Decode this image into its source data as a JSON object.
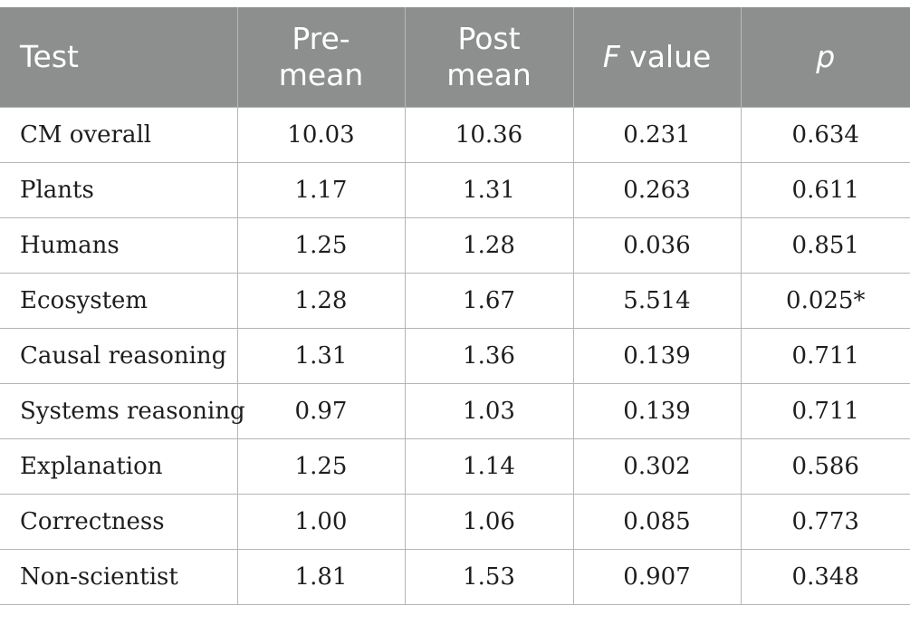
{
  "table": {
    "headers": {
      "test": "Test",
      "pre_mean_line1": "Pre-",
      "pre_mean_line2": "mean",
      "post_mean_line1": "Post",
      "post_mean_line2": "mean",
      "f_value_italic": "F",
      "f_value_rest": " value",
      "p": "p"
    },
    "rows": [
      [
        "CM overall",
        "10.03",
        "10.36",
        "0.231",
        "0.634"
      ],
      [
        "Plants",
        "1.17",
        "1.31",
        "0.263",
        "0.611"
      ],
      [
        "Humans",
        "1.25",
        "1.28",
        "0.036",
        "0.851"
      ],
      [
        "Ecosystem",
        "1.28",
        "1.67",
        "5.514",
        "0.025*"
      ],
      [
        "Causal reasoning",
        "1.31",
        "1.36",
        "0.139",
        "0.711"
      ],
      [
        "Systems reasoning",
        "0.97",
        "1.03",
        "0.139",
        "0.711"
      ],
      [
        "Explanation",
        "1.25",
        "1.14",
        "0.302",
        "0.586"
      ],
      [
        "Correctness",
        "1.00",
        "1.06",
        "0.085",
        "0.773"
      ],
      [
        "Non-scientist",
        "1.81",
        "1.53",
        "0.907",
        "0.348"
      ]
    ]
  },
  "colors": {
    "header_background": "#8d8f8e",
    "header_text": "#ffffff",
    "grid_lines": "#b5b5b5",
    "body_text": "#1e1e1e"
  }
}
